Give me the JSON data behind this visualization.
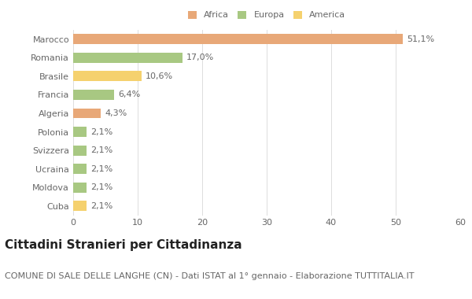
{
  "categories": [
    "Cuba",
    "Moldova",
    "Ucraina",
    "Svizzera",
    "Polonia",
    "Algeria",
    "Francia",
    "Brasile",
    "Romania",
    "Marocco"
  ],
  "values": [
    2.1,
    2.1,
    2.1,
    2.1,
    2.1,
    4.3,
    6.4,
    10.6,
    17.0,
    51.1
  ],
  "labels": [
    "2,1%",
    "2,1%",
    "2,1%",
    "2,1%",
    "2,1%",
    "4,3%",
    "6,4%",
    "10,6%",
    "17,0%",
    "51,1%"
  ],
  "colors": [
    "#f5d16e",
    "#a8c882",
    "#a8c882",
    "#a8c882",
    "#a8c882",
    "#e8a878",
    "#a8c882",
    "#f5d16e",
    "#a8c882",
    "#e8a878"
  ],
  "legend_labels": [
    "Africa",
    "Europa",
    "America"
  ],
  "legend_colors": [
    "#e8a878",
    "#a8c882",
    "#f5d16e"
  ],
  "title": "Cittadini Stranieri per Cittadinanza",
  "subtitle": "COMUNE DI SALE DELLE LANGHE (CN) - Dati ISTAT al 1° gennaio - Elaborazione TUTTITALIA.IT",
  "xlim": [
    0,
    60
  ],
  "xticks": [
    0,
    10,
    20,
    30,
    40,
    50,
    60
  ],
  "background_color": "#ffffff",
  "bar_height": 0.55,
  "title_fontsize": 11,
  "subtitle_fontsize": 8,
  "label_fontsize": 8,
  "tick_fontsize": 8,
  "legend_fontsize": 8,
  "text_color": "#666666",
  "title_color": "#222222"
}
